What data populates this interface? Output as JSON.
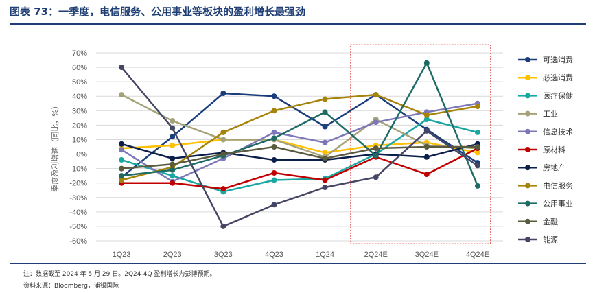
{
  "header": {
    "title": "图表 73：一季度，电信服务、公用事业等板块的盈利增长最强劲"
  },
  "notes": {
    "note": "注：数据截至 2024 年 5 月 29 日。2Q24-4Q 盈利增长为彭博预期。",
    "source": "资料来源：Bloomberg，浦银国际"
  },
  "chart_data": {
    "type": "line",
    "title": "",
    "xlabel": "",
    "ylabel": "季度盈利增速（同比，%）",
    "categories": [
      "1Q23",
      "2Q23",
      "3Q23",
      "4Q23",
      "1Q24",
      "2Q24E",
      "3Q24E",
      "4Q24E"
    ],
    "ylim": [
      -60,
      70
    ],
    "yticks": [
      70,
      60,
      50,
      40,
      30,
      20,
      10,
      0,
      -10,
      -20,
      -30,
      -40,
      -50,
      -60
    ],
    "ytick_labels": [
      "70%",
      "60%",
      "50%",
      "40%",
      "30%",
      "20%",
      "10%",
      "0%",
      "-10%",
      "-20%",
      "-30%",
      "-40%",
      "-50%",
      "-60%"
    ],
    "legend_position": "right",
    "highlight_range": [
      "2Q24E",
      "4Q24E"
    ],
    "series": [
      {
        "name": "可选消费",
        "color": "#1a3d7c",
        "values": [
          -16,
          12,
          42,
          40,
          19,
          41,
          17,
          -6
        ]
      },
      {
        "name": "必选消费",
        "color": "#ffc000",
        "values": [
          4,
          6,
          10,
          10,
          1,
          6,
          8,
          1
        ]
      },
      {
        "name": "医疗保健",
        "color": "#1aa7a1",
        "values": [
          -4,
          -15,
          -26,
          -18,
          -17,
          0,
          24,
          15
        ]
      },
      {
        "name": "工业",
        "color": "#a5a279",
        "values": [
          41,
          23,
          10,
          10,
          -2,
          24,
          6,
          4
        ]
      },
      {
        "name": "信息技术",
        "color": "#7c77b9",
        "values": [
          3,
          -19,
          -3,
          15,
          8,
          22,
          29,
          35
        ]
      },
      {
        "name": "原材料",
        "color": "#c00000",
        "values": [
          -20,
          -20,
          -24,
          -13,
          -18,
          -2,
          -14,
          4
        ]
      },
      {
        "name": "房地产",
        "color": "#0c1f4b",
        "values": [
          7,
          -3,
          1,
          -4,
          -4,
          0,
          -2,
          7
        ]
      },
      {
        "name": "电信服务",
        "color": "#a6830a",
        "values": [
          -18,
          -9,
          15,
          30,
          38,
          41,
          27,
          33
        ]
      },
      {
        "name": "公用事业",
        "color": "#1e6b65",
        "values": [
          -15,
          -11,
          -1,
          11,
          29,
          -1,
          63,
          -22
        ]
      },
      {
        "name": "金融",
        "color": "#595a3e",
        "values": [
          -10,
          -7,
          0,
          5,
          -3,
          4,
          5,
          5
        ]
      },
      {
        "name": "能源",
        "color": "#454664",
        "values": [
          60,
          18,
          -50,
          -35,
          -23,
          -16,
          16,
          -8
        ]
      }
    ]
  }
}
